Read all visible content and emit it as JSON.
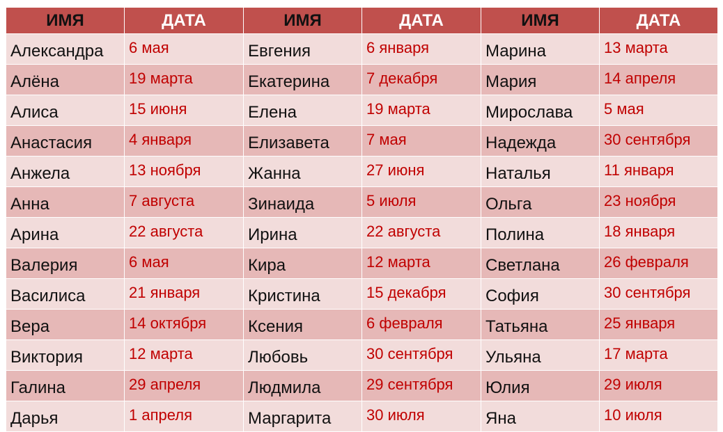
{
  "headers": [
    "ИМЯ",
    "ДАТА",
    "ИМЯ",
    "ДАТА",
    "ИМЯ",
    "ДАТА"
  ],
  "rows": [
    [
      "Александра",
      "6 мая",
      "Евгения",
      "6 января",
      "Марина",
      "13 марта"
    ],
    [
      "Алёна",
      "19 марта",
      "Екатерина",
      "7 декабря",
      "Мария",
      "14 апреля"
    ],
    [
      "Алиса",
      "15 июня",
      "Елена",
      "19 марта",
      "Мирослава",
      "5 мая"
    ],
    [
      "Анастасия",
      "4 января",
      "Елизавета",
      "7 мая",
      "Надежда",
      "30 сентября"
    ],
    [
      "Анжела",
      "13 ноября",
      "Жанна",
      "27 июня",
      "Наталья",
      "11 января"
    ],
    [
      "Анна",
      "7 августа",
      "Зинаида",
      "5 июля",
      "Ольга",
      "23 ноября"
    ],
    [
      "Арина",
      "22 августа",
      "Ирина",
      "22 августа",
      "Полина",
      "18 января"
    ],
    [
      "Валерия",
      "6 мая",
      "Кира",
      "12 марта",
      "Светлана",
      "26 февраля"
    ],
    [
      "Василиса",
      "21 января",
      "Кристина",
      "15 декабря",
      "София",
      "30 сентября"
    ],
    [
      "Вера",
      "14 октября",
      "Ксения",
      "6 февраля",
      "Татьяна",
      "25 января"
    ],
    [
      "Виктория",
      "12 марта",
      "Любовь",
      "30 сентября",
      "Ульяна",
      "17 марта"
    ],
    [
      "Галина",
      "29 апреля",
      "Людмила",
      "29 сентября",
      "Юлия",
      "29 июля"
    ],
    [
      "Дарья",
      "1 апреля",
      "Маргарита",
      "30 июля",
      "Яна",
      "10 июля"
    ]
  ],
  "colors": {
    "header_bg": "#c0504d",
    "row_light": "#f2dcdb",
    "row_dark": "#e6b8b7",
    "date_text": "#c00000"
  }
}
